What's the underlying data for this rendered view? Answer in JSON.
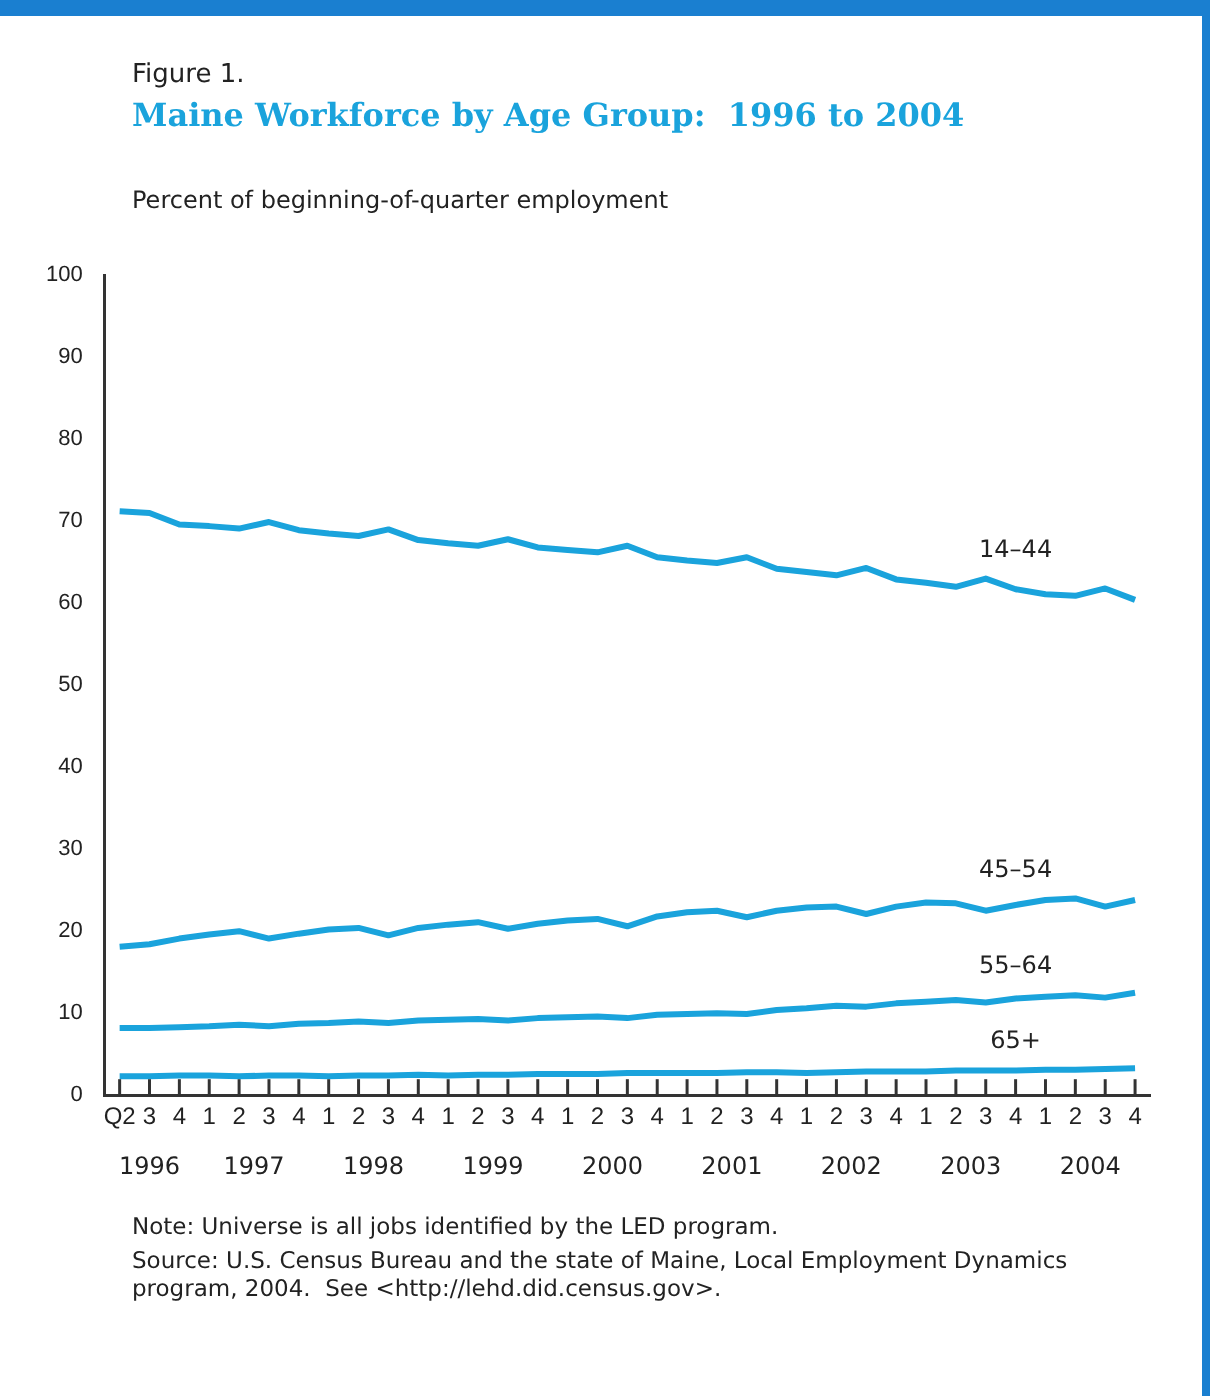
{
  "chart_data": {
    "type": "line",
    "subtitle": "Figure 1.",
    "title": "Maine Workforce by Age Group:  1996 to 2004",
    "ylabel": "Percent of beginning-of-quarter employment",
    "categories": [
      "Q2",
      "3",
      "4",
      "1",
      "2",
      "3",
      "4",
      "1",
      "2",
      "3",
      "4",
      "1",
      "2",
      "3",
      "4",
      "1",
      "2",
      "3",
      "4",
      "1",
      "2",
      "3",
      "4",
      "1",
      "2",
      "3",
      "4",
      "1",
      "2",
      "3",
      "4",
      "1",
      "2",
      "3",
      "4"
    ],
    "ylim": [
      0,
      100
    ],
    "yticks": [
      0,
      10,
      20,
      30,
      40,
      50,
      60,
      70,
      80,
      90,
      100
    ],
    "grid": false,
    "legend": false,
    "marker": "none",
    "line_style": "solid",
    "series": [
      {
        "name": "14–44",
        "color": "#1aa3dc",
        "values": [
          71.2,
          71.0,
          69.6,
          69.4,
          69.1,
          69.9,
          68.9,
          68.5,
          68.2,
          69.0,
          67.7,
          67.3,
          67.0,
          67.8,
          66.8,
          66.5,
          66.2,
          67.0,
          65.6,
          65.2,
          64.9,
          65.6,
          64.2,
          63.8,
          63.4,
          64.3,
          62.9,
          62.5,
          62.0,
          63.0,
          61.7,
          61.1,
          60.9,
          61.8,
          60.4
        ]
      },
      {
        "name": "45–54",
        "color": "#1aa3dc",
        "values": [
          18.1,
          18.4,
          19.1,
          19.6,
          20.0,
          19.1,
          19.7,
          20.2,
          20.4,
          19.5,
          20.4,
          20.8,
          21.1,
          20.3,
          20.9,
          21.3,
          21.5,
          20.6,
          21.8,
          22.3,
          22.5,
          21.7,
          22.5,
          22.9,
          23.0,
          22.1,
          23.0,
          23.5,
          23.4,
          22.5,
          23.2,
          23.8,
          24.0,
          23.0,
          23.8
        ]
      },
      {
        "name": "55–64",
        "color": "#1aa3dc",
        "values": [
          8.2,
          8.2,
          8.3,
          8.4,
          8.6,
          8.4,
          8.7,
          8.8,
          9.0,
          8.8,
          9.1,
          9.2,
          9.3,
          9.1,
          9.4,
          9.5,
          9.6,
          9.4,
          9.8,
          9.9,
          10.0,
          9.9,
          10.4,
          10.6,
          10.9,
          10.8,
          11.2,
          11.4,
          11.6,
          11.3,
          11.8,
          12.0,
          12.2,
          11.9,
          12.5
        ]
      },
      {
        "name": "65+",
        "color": "#1aa3dc",
        "values": [
          2.3,
          2.3,
          2.4,
          2.4,
          2.3,
          2.4,
          2.4,
          2.3,
          2.4,
          2.4,
          2.5,
          2.4,
          2.5,
          2.5,
          2.6,
          2.6,
          2.6,
          2.7,
          2.7,
          2.7,
          2.7,
          2.8,
          2.8,
          2.7,
          2.8,
          2.9,
          2.9,
          2.9,
          3.0,
          3.0,
          3.0,
          3.1,
          3.1,
          3.2,
          3.3
        ]
      }
    ],
    "annotations": [
      "1996",
      "1997",
      "1998",
      "1999",
      "2000",
      "2001",
      "2002",
      "2003",
      "2004",
      "Note: Universe is all jobs identified by the LED program.",
      "Source: U.S. Census Bureau and the state of Maine, Local Employment Dynamics program, 2004.  See <http://lehd.did.census.gov>."
    ]
  }
}
